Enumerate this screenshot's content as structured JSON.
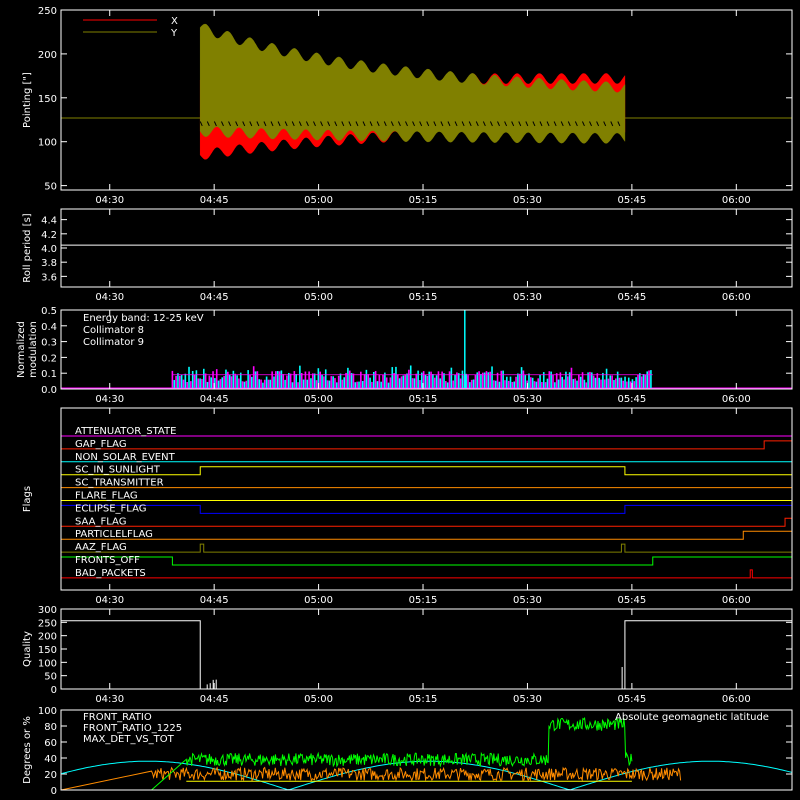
{
  "colors": {
    "background": "#000000",
    "axes": "#ffffff",
    "x_series": "#ff0000",
    "y_series": "#808000",
    "cyan": "#00ffff",
    "magenta": "#ff00ff",
    "green": "#00ff00",
    "orange": "#ff8c00",
    "yellow": "#ffff00",
    "blue": "#0000ff"
  },
  "chart_data": [
    {
      "type": "line",
      "ylabel": "Pointing [\"]",
      "ylim": [
        45,
        250
      ],
      "yticks": [
        50,
        100,
        150,
        200,
        250
      ],
      "xlim": [
        "04:23",
        "06:08"
      ],
      "xticks": [
        "04:30",
        "04:45",
        "05:00",
        "05:15",
        "05:30",
        "05:45",
        "06:00"
      ],
      "legend": [
        "X",
        "Y"
      ],
      "series": [
        {
          "name": "X",
          "color": "#ff0000",
          "baseline": 127,
          "envelope_start": [
            85,
            170
          ],
          "envelope_end": [
            118,
            172
          ]
        },
        {
          "name": "Y",
          "color": "#808000",
          "baseline": 127,
          "envelope_start": [
            112,
            230
          ],
          "envelope_end": [
            103,
            153
          ]
        }
      ],
      "active_range": [
        "04:43",
        "05:44"
      ]
    },
    {
      "type": "line",
      "ylabel": "Roll period [s]",
      "ylim": [
        3.45,
        4.55
      ],
      "yticks": [
        3.6,
        3.8,
        4.0,
        4.2,
        4.4
      ],
      "xticks": [
        "04:30",
        "04:45",
        "05:00",
        "05:15",
        "05:30",
        "05:45",
        "06:00"
      ],
      "series": [
        {
          "name": "",
          "value": 4.04
        }
      ]
    },
    {
      "type": "bar",
      "ylabel_lines": [
        "Normalized",
        "modulation"
      ],
      "ylim": [
        0,
        0.5
      ],
      "yticks": [
        0.0,
        0.1,
        0.2,
        0.3,
        0.4,
        0.5
      ],
      "xticks": [
        "04:30",
        "04:45",
        "05:00",
        "05:15",
        "05:30",
        "05:45",
        "06:00"
      ],
      "legend_lines": [
        "Energy band: 12-25 keV",
        "Collimator 8",
        "Collimator 9"
      ],
      "series": [
        {
          "name": "Collimator 8",
          "color": "#00ffff"
        },
        {
          "name": "Collimator 9",
          "color": "#ff00ff"
        }
      ],
      "active_range": [
        "04:39",
        "05:48"
      ],
      "peak": {
        "time": "05:21",
        "value": 0.5
      }
    },
    {
      "type": "line",
      "ylabel": "Flags",
      "xticks": [
        "04:30",
        "04:45",
        "05:00",
        "05:15",
        "05:30",
        "05:45",
        "06:00"
      ],
      "flags": [
        {
          "name": "ATTENUATOR_STATE",
          "color": "#ff00ff",
          "steps": []
        },
        {
          "name": "GAP_FLAG",
          "color": "#ff2000",
          "steps": [
            {
              "from": "06:04",
              "to": "06:08"
            }
          ]
        },
        {
          "name": "NON_SOLAR_EVENT",
          "color": "#00ffff",
          "steps": []
        },
        {
          "name": "SC_IN_SUNLIGHT",
          "color": "#ffff00",
          "steps": [
            {
              "from": "04:43",
              "to": "05:44"
            }
          ]
        },
        {
          "name": "SC_TRANSMITTER",
          "color": "#ff8c00",
          "steps": []
        },
        {
          "name": "FLARE_FLAG",
          "color": "#ffff00",
          "steps": []
        },
        {
          "name": "ECLIPSE_FLAG",
          "color": "#0000ff",
          "steps": [
            {
              "from": "04:23",
              "to": "04:43"
            },
            {
              "from": "05:44",
              "to": "06:08"
            }
          ]
        },
        {
          "name": "SAA_FLAG",
          "color": "#ff2000",
          "steps": [
            {
              "from": "06:07",
              "to": "06:08"
            }
          ]
        },
        {
          "name": "PARTICLELFLAG",
          "color": "#ff8c00",
          "steps": [
            {
              "from": "06:01",
              "to": "06:08"
            }
          ]
        },
        {
          "name": "AAZ_FLAG",
          "color": "#808000",
          "steps": [
            {
              "from": "04:43",
              "to": "04:43.5"
            },
            {
              "from": "05:43.5",
              "to": "05:44"
            }
          ]
        },
        {
          "name": "FRONTS_OFF",
          "color": "#00ff00",
          "steps": [
            {
              "from": "04:23",
              "to": "04:39"
            },
            {
              "from": "05:48",
              "to": "06:08"
            }
          ]
        },
        {
          "name": "BAD_PACKETS",
          "color": "#ff0000",
          "steps": [
            {
              "from": "06:02",
              "to": "06:02.3"
            }
          ]
        }
      ]
    },
    {
      "type": "line",
      "ylabel": "Quality",
      "ylim": [
        0,
        300
      ],
      "yticks": [
        0,
        50,
        100,
        150,
        200,
        250,
        300
      ],
      "xticks": [
        "04:30",
        "04:45",
        "05:00",
        "05:15",
        "05:30",
        "05:45",
        "06:00"
      ],
      "series": [
        {
          "name": "",
          "segments": [
            {
              "from": "04:23",
              "to": "04:43",
              "value": 256
            },
            {
              "from": "04:43",
              "to": "05:44",
              "value": 0
            },
            {
              "from": "05:44",
              "to": "06:08",
              "value": 256
            }
          ]
        }
      ]
    },
    {
      "type": "line",
      "ylabel": "Degrees or %",
      "ylim": [
        0,
        100
      ],
      "yticks": [
        0,
        20,
        40,
        60,
        80,
        100
      ],
      "legend": [
        "FRONT_RATIO",
        "FRONT_RATIO_1225",
        "MAX_DET_VS_TOT"
      ],
      "annotation": "Absolute geomagnetic latitude",
      "series": [
        {
          "name": "FRONT_RATIO",
          "color": "#ffff00",
          "level": 11
        },
        {
          "name": "FRONT_RATIO_1225",
          "color": "#00ff00",
          "level": 38,
          "high_range": [
            "05:33",
            "05:44"
          ],
          "high_level": 82
        },
        {
          "name": "MAX_DET_VS_TOT",
          "color": "#ff8c00",
          "level": 20
        },
        {
          "name": "Absolute geomagnetic latitude",
          "color": "#00ffff",
          "peaks": 36
        }
      ]
    }
  ]
}
